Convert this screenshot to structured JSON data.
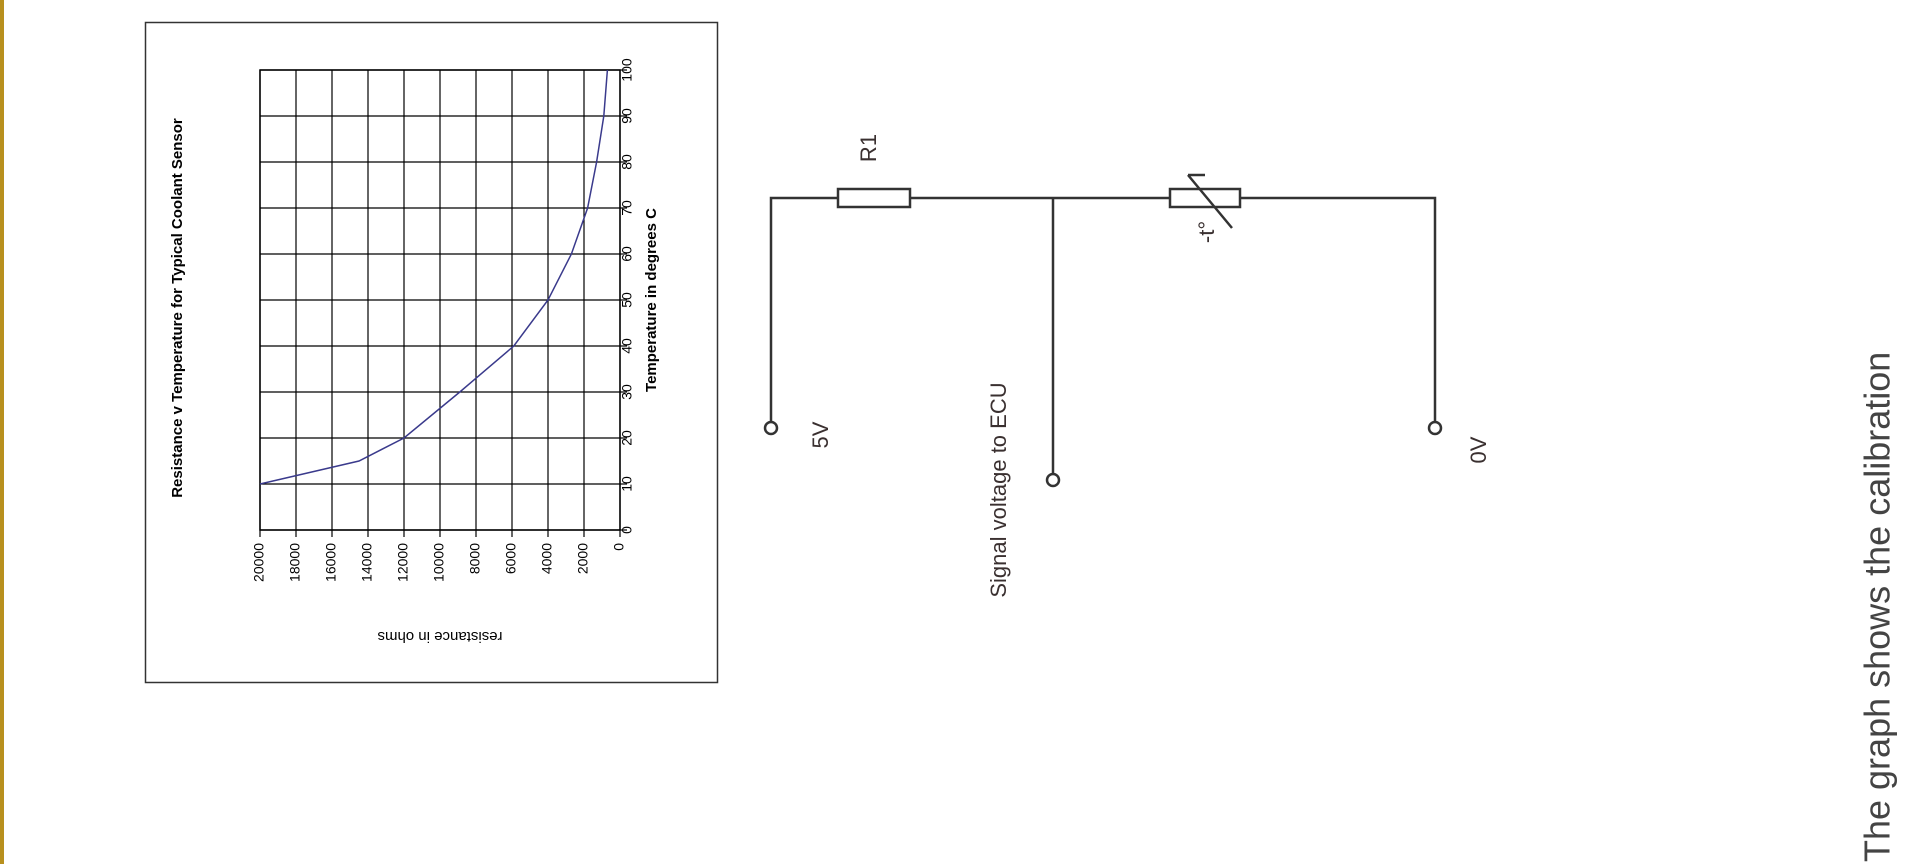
{
  "chart_data": {
    "type": "line",
    "title": "Resistance v Temperature for Typical Coolant Sensor",
    "x_label": "Temperature in degrees C",
    "y_label": "resistance in ohms",
    "x": [
      10,
      15,
      20,
      30,
      40,
      50,
      60,
      70,
      80,
      90,
      100
    ],
    "series": [
      {
        "color": "#3a3a8c",
        "values": [
          20000,
          14500,
          12000,
          8900,
          5900,
          4000,
          2700,
          1800,
          1300,
          900,
          700
        ]
      }
    ],
    "xlim": [
      0,
      100
    ],
    "xticks": [
      0,
      10,
      20,
      30,
      40,
      50,
      60,
      70,
      80,
      90,
      100
    ],
    "ylim": [
      0,
      20000
    ],
    "yticks": [
      0,
      2000,
      4000,
      6000,
      8000,
      10000,
      12000,
      14000,
      16000,
      18000,
      20000
    ],
    "grid": true
  },
  "diagram": {
    "resistor": "R1",
    "thermistor": "-t°",
    "supply": "5V",
    "signal": "Signal voltage to ECU",
    "ground": "0V"
  },
  "caption": "The graph shows the calibration"
}
